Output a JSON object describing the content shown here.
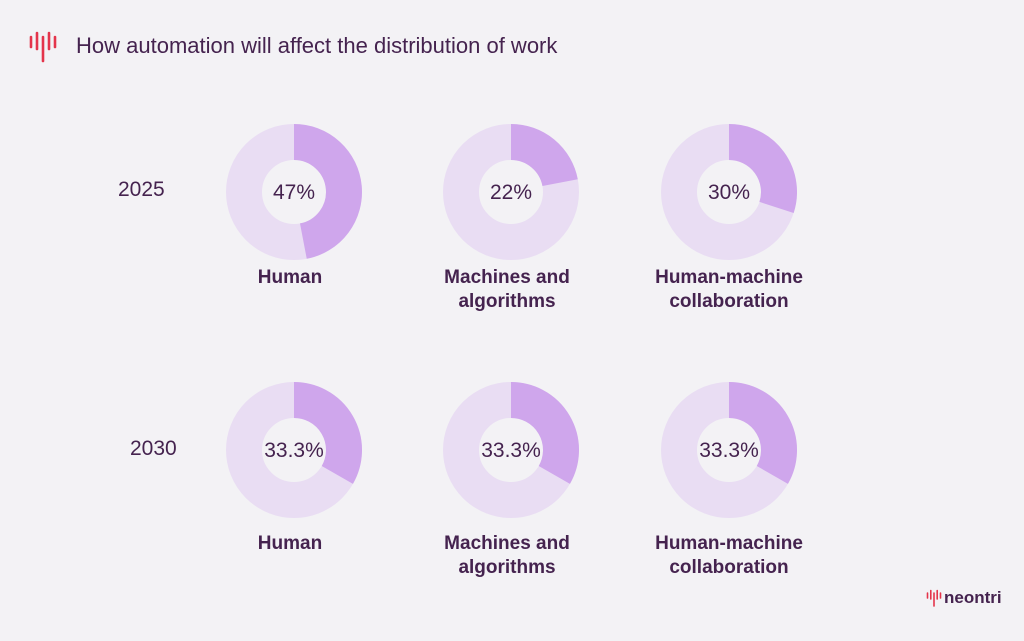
{
  "header": {
    "title": "How automation will affect the distribution of work"
  },
  "colors": {
    "accent": "#cfa6ec",
    "track": "#e9ddf3",
    "text": "#45234f",
    "logo": "#e4344b",
    "background": "#f3f2f5"
  },
  "chart_data": [
    {
      "type": "pie",
      "row_label": "2025",
      "series": [
        {
          "name": "Human",
          "value": 47,
          "label": "47%"
        },
        {
          "name": "Machines and algorithms",
          "value": 22,
          "label": "22%"
        },
        {
          "name": "Human-machine collaboration",
          "value": 30,
          "label": "30%"
        }
      ]
    },
    {
      "type": "pie",
      "row_label": "2030",
      "series": [
        {
          "name": "Human",
          "value": 33.3,
          "label": "33.3%"
        },
        {
          "name": "Machines and algorithms",
          "value": 33.3,
          "label": "33.3%"
        },
        {
          "name": "Human-machine collaboration",
          "value": 33.3,
          "label": "33.3%"
        }
      ]
    }
  ],
  "categories": {
    "human": [
      "Human"
    ],
    "machines": [
      "Machines and",
      "algorithms"
    ],
    "collab": [
      "Human-machine",
      "collaboration"
    ]
  },
  "brand": {
    "name": "neontri",
    "logo_icon": "equalizer-bars-icon"
  }
}
